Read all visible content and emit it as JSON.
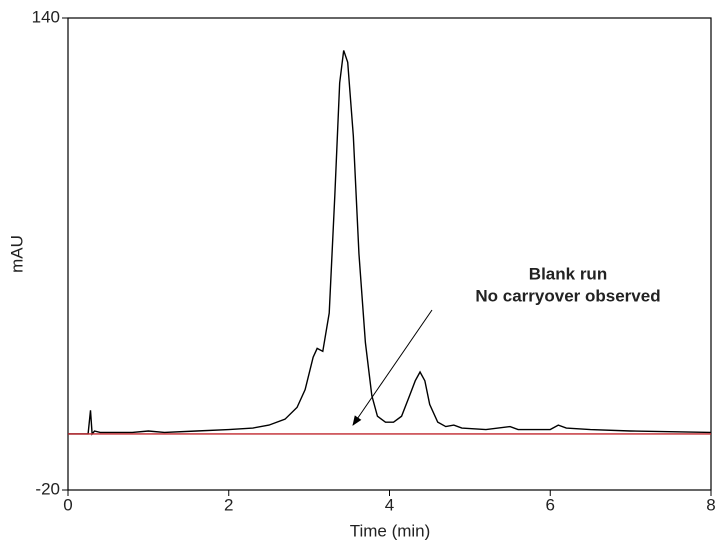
{
  "chart_data": {
    "type": "line",
    "xlabel": "Time (min)",
    "ylabel": "mAU",
    "annotation": [
      "Blank run",
      "No carryover observed"
    ],
    "xlim": [
      0,
      8
    ],
    "xticks": [
      0,
      2,
      4,
      6,
      8
    ],
    "ylim": [
      -20,
      140
    ],
    "yticks": [
      -20,
      140
    ],
    "grid": false,
    "series": [
      {
        "color": "#000000",
        "x": [
          0,
          0.25,
          0.28,
          0.3,
          0.33,
          0.4,
          0.5,
          0.8,
          1.0,
          1.2,
          1.6,
          2.0,
          2.3,
          2.5,
          2.7,
          2.85,
          2.95,
          3.05,
          3.1,
          3.17,
          3.25,
          3.32,
          3.38,
          3.43,
          3.48,
          3.55,
          3.62,
          3.7,
          3.78,
          3.85,
          3.95,
          4.05,
          4.15,
          4.25,
          4.32,
          4.38,
          4.44,
          4.5,
          4.6,
          4.7,
          4.8,
          4.9,
          5.2,
          5.5,
          5.6,
          6.0,
          6.1,
          6.2,
          6.5,
          7.0,
          8.0
        ],
        "values": [
          -1,
          -1,
          7,
          -1,
          0,
          -0.5,
          -0.5,
          -0.5,
          0,
          -0.5,
          0,
          0.5,
          1,
          2,
          4,
          8,
          14,
          25,
          28,
          27,
          40,
          80,
          118,
          129,
          125,
          100,
          60,
          30,
          12,
          5,
          3,
          3,
          5,
          12,
          17,
          20,
          17,
          9,
          3,
          1.5,
          2,
          1,
          0.5,
          1.5,
          0.5,
          0.5,
          2,
          1,
          0.5,
          0,
          -0.5
        ]
      },
      {
        "color": "#c0272d",
        "x": [
          0,
          8
        ],
        "values": [
          -1,
          -1
        ]
      }
    ]
  }
}
